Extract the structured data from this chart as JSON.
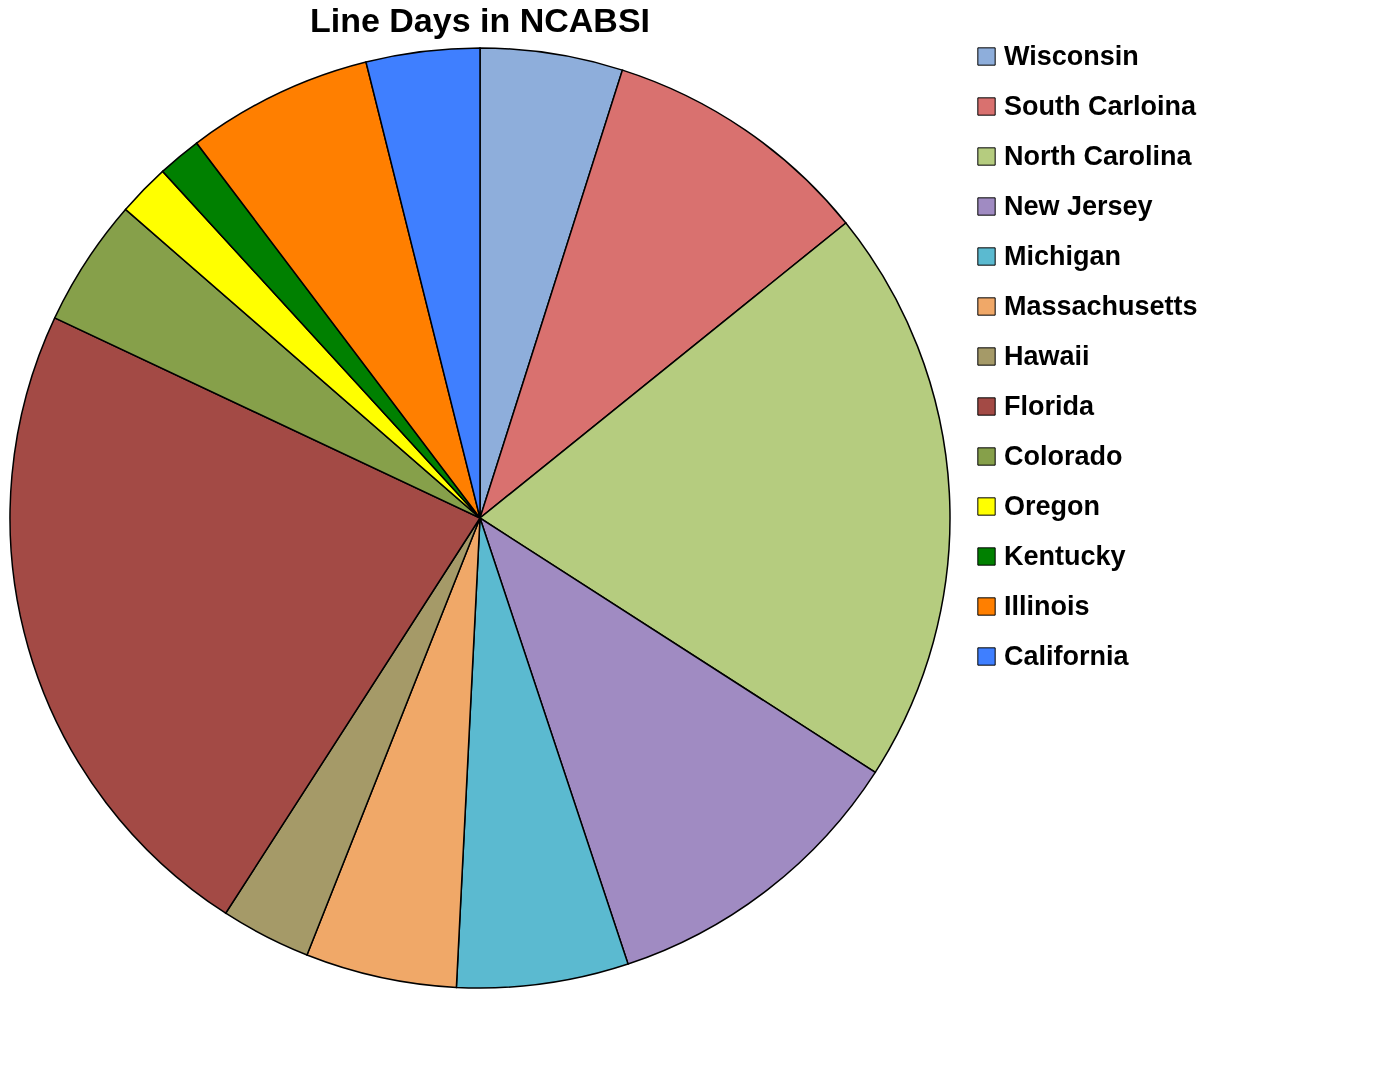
{
  "chart_data": {
    "type": "pie",
    "title": "Line Days in NCABSI",
    "categories": [
      "Wisconsin",
      "South Carloina",
      "North Carolina",
      "New Jersey",
      "Michigan",
      "Massachusetts",
      "Hawaii",
      "Florida",
      "Colorado",
      "Oregon",
      "Kentucky",
      "Illinois",
      "California"
    ],
    "values": [
      4.9,
      9.3,
      19.9,
      10.8,
      5.9,
      5.2,
      3.1,
      22.9,
      4.4,
      1.8,
      1.5,
      6.4,
      3.9
    ],
    "colors": [
      "#8eaedb",
      "#d9716f",
      "#b5cc7f",
      "#a08bc2",
      "#5bbad0",
      "#f0a868",
      "#a59a68",
      "#a34a45",
      "#86a04a",
      "#ffff00",
      "#008000",
      "#ff7f00",
      "#3f7fff"
    ],
    "legend": "right"
  }
}
